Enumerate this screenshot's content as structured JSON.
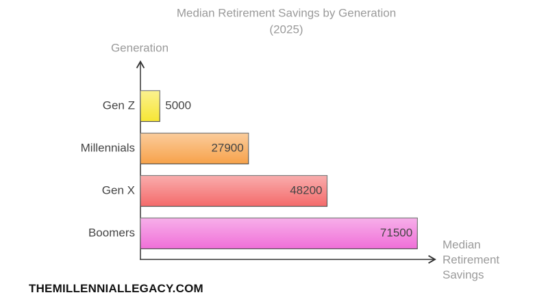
{
  "chart_data": {
    "type": "bar",
    "orientation": "horizontal",
    "title": "Median Retirement Savings by Generation",
    "subtitle": "(2025)",
    "y_label": "Generation",
    "x_label": "Median Retirement Savings",
    "categories": [
      "Gen Z",
      "Millennials",
      "Gen X",
      "Boomers"
    ],
    "values": [
      5000,
      27900,
      48200,
      71500
    ],
    "colors": [
      "#f7e634",
      "#f7a24a",
      "#f46a6a",
      "#f06fd8"
    ],
    "xlim": [
      0,
      75000
    ],
    "grid": false
  },
  "footer": "THEMILLENNIALLEGACY.COM"
}
